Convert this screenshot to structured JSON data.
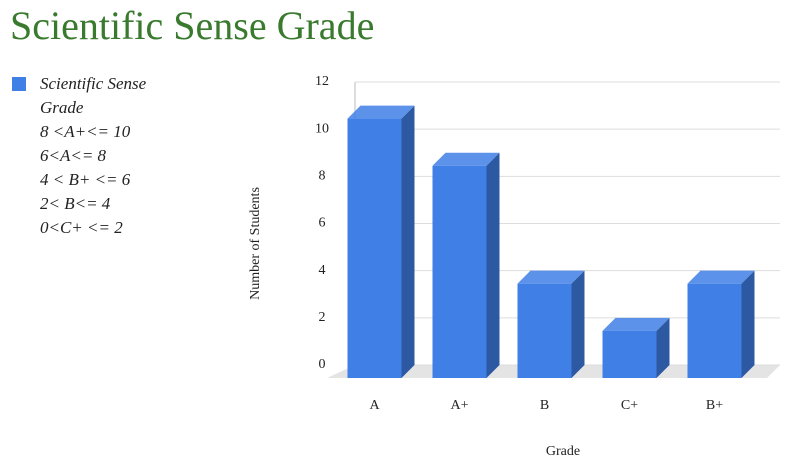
{
  "chart_data": {
    "type": "bar3d",
    "title": "Scientific Sense Grade",
    "x_label": "Grade",
    "y_label": "Number of Students",
    "categories": [
      "A",
      "A+",
      "B",
      "C+",
      "B+"
    ],
    "series": [
      {
        "name": "Scientific Sense Grade",
        "color": "#3f7fe6",
        "values": [
          11,
          9,
          4,
          2,
          4
        ]
      }
    ],
    "legend_notes": [
      "8 <A+<= 10",
      "6<A<= 8",
      "4 < B+ <= 6",
      "2< B<= 4",
      "0<C+ <= 2"
    ],
    "ylim": [
      0,
      12
    ],
    "yticks": [
      0,
      2,
      4,
      6,
      8,
      10,
      12
    ],
    "grid": true,
    "legend": "left"
  }
}
